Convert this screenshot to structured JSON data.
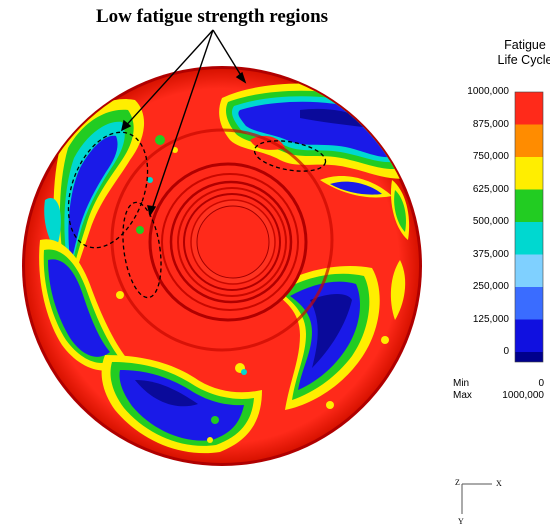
{
  "annotation": {
    "title": "Low fatigue strength regions"
  },
  "legend": {
    "title_line1": "Fatigue",
    "title_line2": "Life Cycle",
    "levels": [
      "1000,000",
      "875,000",
      "750,000",
      "625,000",
      "500,000",
      "375,000",
      "250,000",
      "125,000",
      "0"
    ],
    "colors": [
      "#ff2a1a",
      "#ff8c00",
      "#ffee00",
      "#22cc22",
      "#00d8d0",
      "#7fd0ff",
      "#3a6cff",
      "#1010e0",
      "#00008c"
    ],
    "min_label": "Min",
    "min_value": "0",
    "max_label": "Max",
    "max_value": "1000,000"
  },
  "axes": {
    "x_label": "X",
    "y_label": "Y",
    "z_label": "Z"
  },
  "palette": {
    "red": "#ff2a1a",
    "yellow": "#ffee00",
    "green": "#22cc22",
    "cyan": "#00d8d0",
    "blue": "#1a1ae8",
    "darkblue": "#0a0a9a",
    "rim": "#c40000"
  }
}
